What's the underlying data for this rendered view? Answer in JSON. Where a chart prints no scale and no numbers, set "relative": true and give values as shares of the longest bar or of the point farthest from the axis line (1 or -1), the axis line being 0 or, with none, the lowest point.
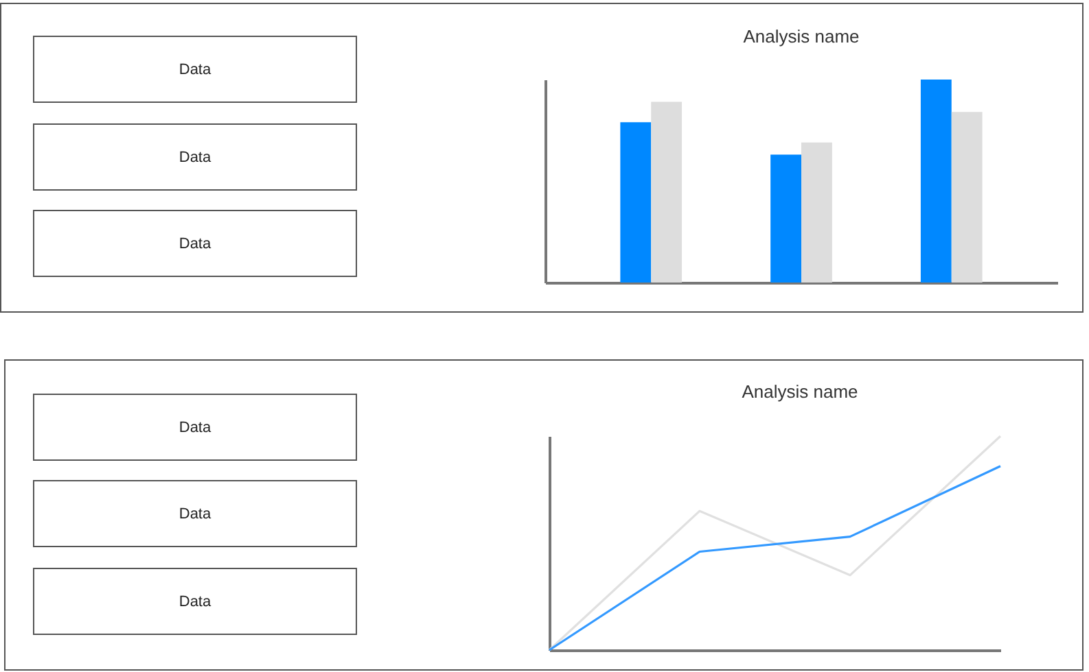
{
  "chart_data": [
    {
      "type": "other",
      "annotations": [
        "Data",
        "Data",
        "Data"
      ]
    },
    {
      "type": "bar",
      "title": "Analysis name",
      "relative": true,
      "tick_labels": false,
      "categories": [
        null,
        null,
        null
      ],
      "series": [
        {
          "color": "#0088ff",
          "values": [
            0.79,
            0.63,
            1
          ]
        },
        {
          "color": "#dddddd",
          "values": [
            0.89,
            0.69,
            0.84
          ]
        }
      ]
    },
    {
      "type": "other",
      "annotations": [
        "Data",
        "Data",
        "Data"
      ]
    },
    {
      "type": "line",
      "title": "Analysis name",
      "relative": true,
      "tick_labels": false,
      "categories": [
        null,
        null,
        null,
        null
      ],
      "series": [
        {
          "color": "#e0e0e0",
          "values": [
            0,
            0.65,
            0.35,
            1
          ]
        },
        {
          "color": "#3399ff",
          "values": [
            0,
            0.46,
            0.53,
            0.86
          ]
        }
      ]
    }
  ]
}
